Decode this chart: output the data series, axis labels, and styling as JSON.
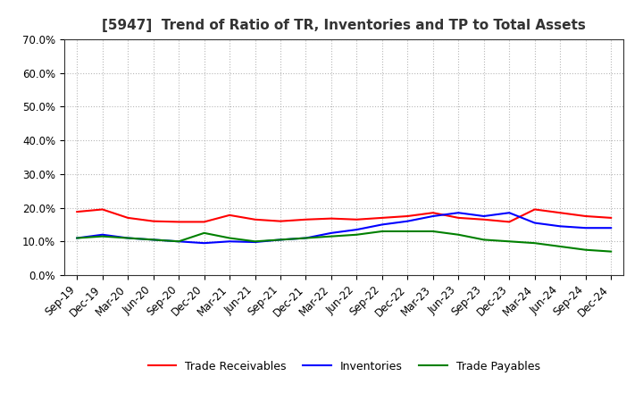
{
  "title": "[5947]  Trend of Ratio of TR, Inventories and TP to Total Assets",
  "x_labels": [
    "Sep-19",
    "Dec-19",
    "Mar-20",
    "Jun-20",
    "Sep-20",
    "Dec-20",
    "Mar-21",
    "Jun-21",
    "Sep-21",
    "Dec-21",
    "Mar-22",
    "Jun-22",
    "Sep-22",
    "Dec-22",
    "Mar-23",
    "Jun-23",
    "Sep-23",
    "Dec-23",
    "Mar-24",
    "Jun-24",
    "Sep-24",
    "Dec-24"
  ],
  "trade_receivables": [
    18.8,
    19.5,
    17.0,
    16.0,
    15.8,
    15.8,
    17.8,
    16.5,
    16.0,
    16.5,
    16.8,
    16.5,
    17.0,
    17.5,
    18.5,
    17.0,
    16.5,
    15.8,
    19.5,
    18.5,
    17.5,
    17.0
  ],
  "inventories": [
    11.0,
    12.0,
    11.0,
    10.5,
    10.0,
    9.5,
    10.0,
    9.8,
    10.5,
    11.0,
    12.5,
    13.5,
    15.0,
    16.0,
    17.5,
    18.5,
    17.5,
    18.5,
    15.5,
    14.5,
    14.0,
    14.0
  ],
  "trade_payables": [
    11.0,
    11.5,
    11.0,
    10.5,
    10.0,
    12.5,
    11.0,
    10.0,
    10.5,
    11.0,
    11.5,
    12.0,
    13.0,
    13.0,
    13.0,
    12.0,
    10.5,
    10.0,
    9.5,
    8.5,
    7.5,
    7.0
  ],
  "ylim": [
    0,
    70
  ],
  "yticks": [
    0,
    10,
    20,
    30,
    40,
    50,
    60,
    70
  ],
  "colors": {
    "trade_receivables": "#FF0000",
    "inventories": "#0000FF",
    "trade_payables": "#008000"
  },
  "legend_labels": [
    "Trade Receivables",
    "Inventories",
    "Trade Payables"
  ],
  "background_color": "#FFFFFF",
  "grid_color": "#999999",
  "line_width": 1.5,
  "title_fontsize": 11,
  "tick_fontsize": 8.5,
  "legend_fontsize": 9
}
